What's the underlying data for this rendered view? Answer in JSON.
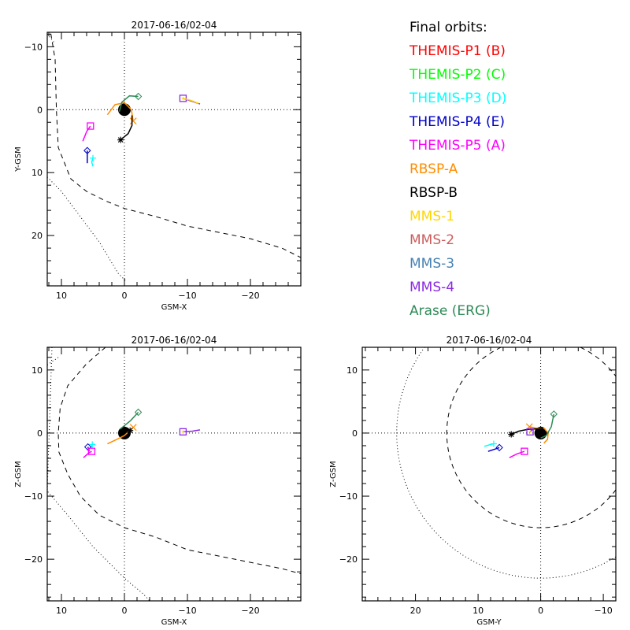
{
  "legend": {
    "title": "Final orbits:",
    "items": [
      {
        "label": "THEMIS-P1 (B)",
        "color": "#ff0000"
      },
      {
        "label": "THEMIS-P2 (C)",
        "color": "#00ff00"
      },
      {
        "label": "THEMIS-P3 (D)",
        "color": "#00ffff"
      },
      {
        "label": "THEMIS-P4 (E)",
        "color": "#0000c8"
      },
      {
        "label": "THEMIS-P5 (A)",
        "color": "#ff00ff"
      },
      {
        "label": "RBSP-A",
        "color": "#ff8c00"
      },
      {
        "label": "RBSP-B",
        "color": "#000000"
      },
      {
        "label": "MMS-1",
        "color": "#ffd700"
      },
      {
        "label": "MMS-2",
        "color": "#cd5c5c"
      },
      {
        "label": "MMS-3",
        "color": "#4682b4"
      },
      {
        "label": "MMS-4",
        "color": "#8a2be2"
      },
      {
        "label": "Arase (ERG)",
        "color": "#2e8b57"
      }
    ]
  },
  "chart_data": [
    {
      "type": "line",
      "title": "2017-06-16/02-04",
      "xlabel": "GSM-X",
      "ylabel": "Y-GSM",
      "xlim": [
        12.25,
        -28
      ],
      "ylim": [
        28,
        -12.3
      ],
      "xticks": [
        10,
        0,
        -10,
        -20
      ],
      "yticks": [
        -10,
        0,
        10,
        20
      ],
      "earth": {
        "x": 0,
        "y": 0,
        "r": 1
      },
      "magnetopause": [
        [
          14,
          -20
        ],
        [
          12,
          -14
        ],
        [
          11,
          -8
        ],
        [
          10.8,
          0
        ],
        [
          10.5,
          6
        ],
        [
          8.5,
          11
        ],
        [
          6,
          13
        ],
        [
          3,
          14.5
        ],
        [
          0,
          15.7
        ],
        [
          -5,
          17
        ],
        [
          -10,
          18.5
        ],
        [
          -15,
          19.5
        ],
        [
          -20,
          20.5
        ],
        [
          -25,
          22
        ],
        [
          -28,
          23.5
        ]
      ],
      "bow_shock": [
        [
          12.25,
          -12
        ],
        [
          11,
          -10.5
        ],
        [
          12.25,
          10.7
        ],
        [
          10,
          13
        ],
        [
          7,
          17
        ],
        [
          4,
          21
        ],
        [
          1,
          26
        ],
        [
          -0.2,
          27.2
        ]
      ],
      "series": [
        {
          "name": "THEMIS-P3 (D)",
          "symbol": "plus",
          "path": [
            [
              5.0,
              9.0
            ],
            [
              5.2,
              8.3
            ],
            [
              5.0,
              7.7
            ]
          ]
        },
        {
          "name": "THEMIS-P4 (E)",
          "symbol": "diamond",
          "path": [
            [
              5.9,
              8.5
            ],
            [
              5.9,
              7.2
            ],
            [
              5.9,
              6.5
            ]
          ]
        },
        {
          "name": "THEMIS-P5 (A)",
          "symbol": "square",
          "path": [
            [
              6.6,
              5.0
            ],
            [
              6.0,
              3.5
            ],
            [
              5.4,
              2.6
            ]
          ]
        },
        {
          "name": "RBSP-A",
          "symbol": "x",
          "path": [
            [
              2.7,
              0.8
            ],
            [
              1.5,
              -0.8
            ],
            [
              0,
              -1.1
            ],
            [
              -1.1,
              0
            ],
            [
              -1.3,
              1.2
            ],
            [
              -1.4,
              1.8
            ]
          ]
        },
        {
          "name": "RBSP-B",
          "symbol": "asterisk",
          "path": [
            [
              -1.2,
              0.9
            ],
            [
              -1.2,
              2.5
            ],
            [
              -0.6,
              3.8
            ],
            [
              0.6,
              4.8
            ]
          ]
        },
        {
          "name": "MMS-4",
          "symbol": "square",
          "path": [
            [
              -12,
              -0.9
            ],
            [
              -10.5,
              -1.4
            ],
            [
              -9.3,
              -1.8
            ]
          ]
        },
        {
          "name": "MMS-1",
          "symbol": "asterisk-small",
          "path": [
            [
              -11.8,
              -1.0
            ],
            [
              -10.5,
              -1.5
            ],
            [
              -9.3,
              -1.8
            ]
          ]
        },
        {
          "name": "Arase (ERG)",
          "symbol": "diamond",
          "path": [
            [
              0.8,
              0.3
            ],
            [
              0.4,
              -1.2
            ],
            [
              -0.8,
              -2.2
            ],
            [
              -2.2,
              -2.1
            ]
          ]
        }
      ]
    },
    {
      "type": "line",
      "title": "2017-06-16/02-04",
      "xlabel": "GSM-X",
      "ylabel": "Z-GSM",
      "xlim": [
        12.25,
        -28
      ],
      "ylim": [
        -26.6,
        13.6
      ],
      "xticks": [
        10,
        0,
        -10,
        -20
      ],
      "yticks": [
        10,
        0,
        -10,
        -20
      ],
      "earth": {
        "x": 0,
        "y": 0,
        "r": 1
      },
      "magnetopause": [
        [
          3,
          13.6
        ],
        [
          6,
          11
        ],
        [
          9,
          7.5
        ],
        [
          10.2,
          4
        ],
        [
          10.5,
          0
        ],
        [
          10.4,
          -3
        ],
        [
          9,
          -6.5
        ],
        [
          7,
          -10
        ],
        [
          4,
          -13
        ],
        [
          0,
          -15
        ],
        [
          -5,
          -16.5
        ],
        [
          -10,
          -18.5
        ],
        [
          -15,
          -19.5
        ],
        [
          -20,
          -20.5
        ],
        [
          -25,
          -21.5
        ],
        [
          -28,
          -22.3
        ]
      ],
      "bow_shock": [
        [
          12.25,
          10.8
        ],
        [
          10.5,
          12
        ],
        [
          11.5,
          13.6
        ],
        [
          12.25,
          -9.2
        ],
        [
          9,
          -13
        ],
        [
          5,
          -18
        ],
        [
          2,
          -21
        ],
        [
          0,
          -23
        ],
        [
          -3,
          -25.5
        ],
        [
          -4,
          -26.6
        ]
      ],
      "series": [
        {
          "name": "THEMIS-P3 (D)",
          "symbol": "plus",
          "path": [
            [
              5.3,
              -2.2
            ],
            [
              5.1,
              -1.8
            ]
          ]
        },
        {
          "name": "THEMIS-P4 (E)",
          "symbol": "diamond",
          "path": [
            [
              5.6,
              -2.9
            ],
            [
              5.8,
              -2.2
            ]
          ]
        },
        {
          "name": "THEMIS-P5 (A)",
          "symbol": "square",
          "path": [
            [
              6.5,
              -3.9
            ],
            [
              5.6,
              -3.1
            ],
            [
              5.2,
              -2.9
            ]
          ]
        },
        {
          "name": "RBSP-A",
          "symbol": "x",
          "path": [
            [
              2.7,
              -1.7
            ],
            [
              1.2,
              -1.0
            ],
            [
              0,
              -0.4
            ],
            [
              -1.4,
              0.9
            ]
          ]
        },
        {
          "name": "RBSP-B",
          "symbol": "asterisk",
          "path": [
            [
              -0.5,
              0.0
            ],
            [
              -0.9,
              0.4
            ]
          ]
        },
        {
          "name": "MMS-4",
          "symbol": "square",
          "path": [
            [
              -12,
              0.5
            ],
            [
              -10.8,
              0.3
            ],
            [
              -9.3,
              0.2
            ]
          ]
        },
        {
          "name": "MMS-1",
          "symbol": "asterisk-small",
          "path": [
            [
              -9.3,
              0.2
            ]
          ]
        },
        {
          "name": "Arase (ERG)",
          "symbol": "diamond",
          "path": [
            [
              0.7,
              0.6
            ],
            [
              -1,
              2
            ],
            [
              -2.2,
              3.3
            ]
          ]
        }
      ]
    },
    {
      "type": "line",
      "title": "2017-06-16/02-04",
      "xlabel": "GSM-Y",
      "ylabel": "Z-GSM",
      "xlim": [
        28.5,
        -12
      ],
      "ylim": [
        -26.6,
        13.6
      ],
      "xticks": [
        20,
        10,
        0,
        -10
      ],
      "yticks": [
        10,
        0,
        -10,
        -20
      ],
      "earth": {
        "x": 0,
        "y": 0,
        "r": 1
      },
      "magnetopause_circle_r": 15,
      "bow_shock_circle_r": 23,
      "series": [
        {
          "name": "THEMIS-P3 (D)",
          "symbol": "plus",
          "path": [
            [
              9.0,
              -2.1
            ],
            [
              8.0,
              -1.8
            ],
            [
              7.5,
              -1.7
            ]
          ]
        },
        {
          "name": "THEMIS-P4 (E)",
          "symbol": "diamond",
          "path": [
            [
              8.4,
              -2.9
            ],
            [
              7.5,
              -2.6
            ],
            [
              6.6,
              -2.3
            ]
          ]
        },
        {
          "name": "THEMIS-P5 (A)",
          "symbol": "square",
          "path": [
            [
              5,
              -3.9
            ],
            [
              3.8,
              -3.3
            ],
            [
              2.6,
              -2.9
            ]
          ]
        },
        {
          "name": "RBSP-A",
          "symbol": "x",
          "path": [
            [
              -0.5,
              -1.6
            ],
            [
              -1.1,
              -1.0
            ],
            [
              -1.2,
              0
            ],
            [
              -0.6,
              0.7
            ],
            [
              0.8,
              0.8
            ],
            [
              1.8,
              1.0
            ]
          ]
        },
        {
          "name": "RBSP-B",
          "symbol": "asterisk",
          "path": [
            [
              -0.4,
              0.7
            ],
            [
              2,
              0.6
            ],
            [
              3.5,
              0.3
            ],
            [
              4.7,
              -0.2
            ]
          ]
        },
        {
          "name": "MMS-4",
          "symbol": "square",
          "path": [
            [
              1.2,
              0.6
            ],
            [
              1.5,
              0.4
            ],
            [
              1.7,
              0.2
            ]
          ]
        },
        {
          "name": "MMS-1",
          "symbol": "asterisk-small",
          "path": [
            [
              1.7,
              0.2
            ]
          ]
        },
        {
          "name": "Arase (ERG)",
          "symbol": "diamond",
          "path": [
            [
              0,
              -0.8
            ],
            [
              -0.9,
              -0.4
            ],
            [
              -1.7,
              1.0
            ],
            [
              -2.1,
              3.0
            ]
          ]
        }
      ]
    }
  ]
}
